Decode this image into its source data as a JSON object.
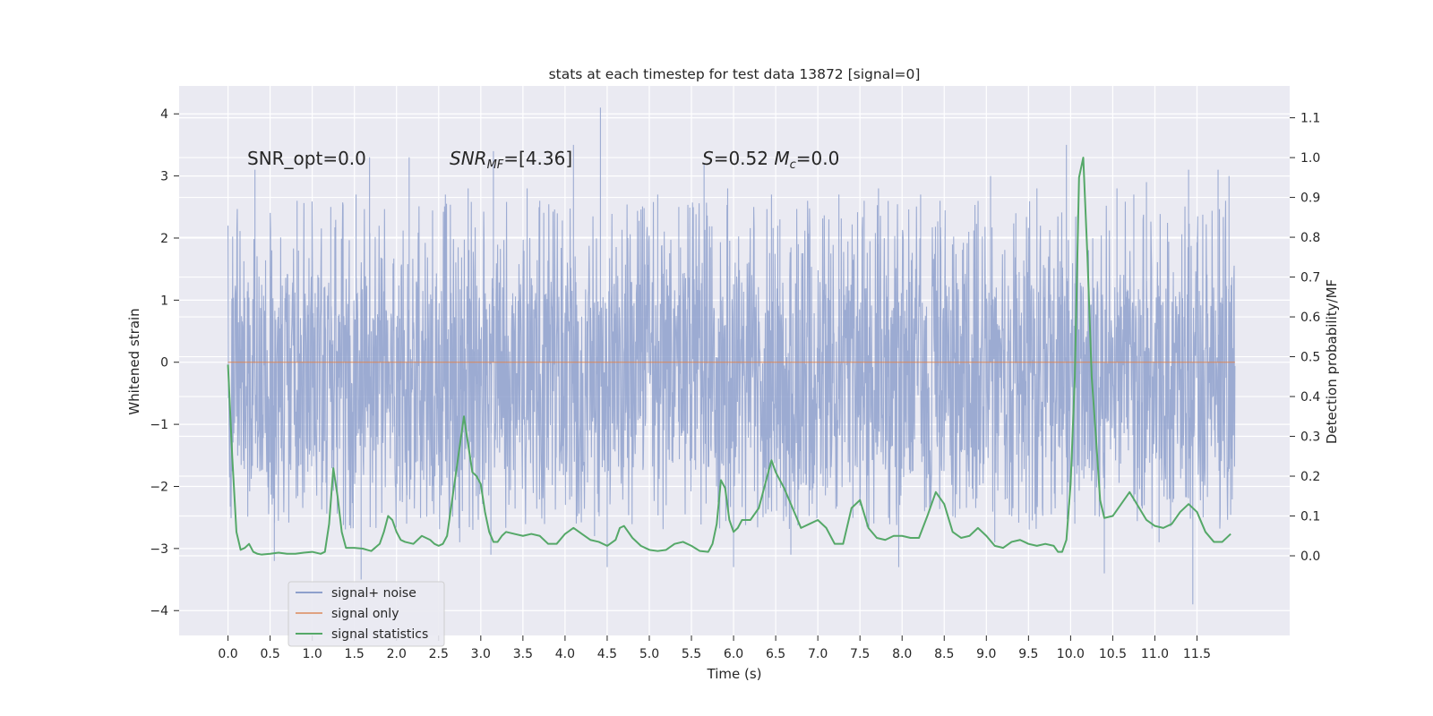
{
  "chart_data": {
    "type": "line",
    "title": "stats at each timestep for test data 13872 [signal=0]",
    "xlabel": "Time (s)",
    "ylabel_left": "Whitened strain",
    "ylabel_right": "Detection probability/MF",
    "xlim": [
      -0.58,
      12.6
    ],
    "ylim_left": [
      -4.4,
      4.45
    ],
    "ylim_right": [
      -0.2,
      1.18
    ],
    "x_ticks": [
      0.0,
      0.5,
      1.0,
      1.5,
      2.0,
      2.5,
      3.0,
      3.5,
      4.0,
      4.5,
      5.0,
      5.5,
      6.0,
      6.5,
      7.0,
      7.5,
      8.0,
      8.5,
      9.0,
      9.5,
      10.0,
      10.5,
      11.0,
      11.5
    ],
    "x_tick_labels": [
      "0.0",
      "0.5",
      "1.0",
      "1.5",
      "2.0",
      "2.5",
      "3.0",
      "3.5",
      "4.0",
      "4.5",
      "5.0",
      "5.5",
      "6.0",
      "6.5",
      "7.0",
      "7.5",
      "8.0",
      "8.5",
      "9.0",
      "9.5",
      "10.0",
      "10.5",
      "11.0",
      "11.5"
    ],
    "y_left_ticks": [
      -4,
      -3,
      -2,
      -1,
      0,
      1,
      2,
      3,
      4
    ],
    "y_left_tick_labels": [
      "−4",
      "−3",
      "−2",
      "−1",
      "0",
      "1",
      "2",
      "3",
      "4"
    ],
    "y_right_ticks": [
      0.0,
      0.1,
      0.2,
      0.3,
      0.4,
      0.5,
      0.6,
      0.7,
      0.8,
      0.9,
      1.0,
      1.1
    ],
    "y_right_tick_labels": [
      "0.0",
      "0.1",
      "0.2",
      "0.3",
      "0.4",
      "0.5",
      "0.6",
      "0.7",
      "0.8",
      "0.9",
      "1.0",
      "1.1"
    ],
    "grid": true,
    "legend_position": "lower-left",
    "annotations": [
      {
        "text": "SNR_opt=0.0"
      },
      {
        "pieces": [
          [
            "SNR",
            "i"
          ],
          [
            "MF",
            "i-sub"
          ],
          [
            "=[4.36]",
            "n"
          ]
        ]
      },
      {
        "pieces": [
          [
            "S",
            "i"
          ],
          [
            "=0.52   ",
            "n"
          ],
          [
            "M",
            "i"
          ],
          [
            "c",
            "i-sub"
          ],
          [
            "=0.0",
            "n"
          ]
        ]
      }
    ],
    "series": [
      {
        "name": "signal+ noise",
        "axis": "left",
        "color": "#8ea0cc",
        "time_range": [
          0.0,
          11.95
        ],
        "envelope_high": 1.3,
        "envelope_low": -1.8,
        "spikes": [
          [
            0.32,
            3.1
          ],
          [
            0.82,
            2.6
          ],
          [
            1.22,
            2.5
          ],
          [
            1.52,
            2.7
          ],
          [
            1.68,
            3.3
          ],
          [
            1.58,
            -3.5
          ],
          [
            2.12,
            -2.6
          ],
          [
            2.15,
            3.3
          ],
          [
            2.58,
            2.7
          ],
          [
            2.85,
            2.8
          ],
          [
            3.15,
            3.4
          ],
          [
            3.12,
            -3.1
          ],
          [
            3.55,
            2.8
          ],
          [
            4.1,
            3.5
          ],
          [
            4.42,
            4.1
          ],
          [
            4.5,
            -3.3
          ],
          [
            4.35,
            -2.8
          ],
          [
            5.1,
            2.7
          ],
          [
            5.65,
            3.2
          ],
          [
            5.93,
            2.8
          ],
          [
            6.0,
            -3.3
          ],
          [
            6.45,
            2.7
          ],
          [
            6.55,
            2.3
          ],
          [
            6.68,
            -3.1
          ],
          [
            7.25,
            2.7
          ],
          [
            7.55,
            2.6
          ],
          [
            7.72,
            2.8
          ],
          [
            7.96,
            -3.3
          ],
          [
            8.45,
            2.6
          ],
          [
            9.05,
            3.0
          ],
          [
            9.1,
            -2.9
          ],
          [
            9.6,
            2.8
          ],
          [
            9.95,
            3.5
          ],
          [
            10.05,
            -2.6
          ],
          [
            10.4,
            -3.4
          ],
          [
            10.55,
            2.8
          ],
          [
            10.9,
            2.9
          ],
          [
            11.05,
            -2.9
          ],
          [
            11.4,
            3.1
          ],
          [
            11.45,
            -3.9
          ],
          [
            11.75,
            3.1
          ],
          [
            11.88,
            3.0
          ],
          [
            11.9,
            -2.0
          ],
          [
            0.55,
            -3.2
          ],
          [
            2.75,
            -2.9
          ],
          [
            3.7,
            2.6
          ],
          [
            5.35,
            2.5
          ],
          [
            8.22,
            2.7
          ],
          [
            9.35,
            2.4
          ],
          [
            10.75,
            2.7
          ]
        ]
      },
      {
        "name": "signal only",
        "axis": "left",
        "color": "#dd8452",
        "x": [
          0.0,
          11.95
        ],
        "y": [
          0.0,
          0.0
        ]
      },
      {
        "name": "signal statistics",
        "axis": "right",
        "color": "#55a868",
        "x": [
          0.0,
          0.05,
          0.1,
          0.15,
          0.2,
          0.25,
          0.3,
          0.35,
          0.4,
          0.5,
          0.6,
          0.7,
          0.8,
          0.9,
          1.0,
          1.1,
          1.15,
          1.2,
          1.25,
          1.3,
          1.35,
          1.4,
          1.5,
          1.6,
          1.7,
          1.8,
          1.85,
          1.9,
          1.95,
          2.0,
          2.05,
          2.1,
          2.2,
          2.3,
          2.4,
          2.45,
          2.5,
          2.55,
          2.6,
          2.7,
          2.8,
          2.85,
          2.9,
          2.95,
          3.0,
          3.05,
          3.1,
          3.15,
          3.2,
          3.25,
          3.3,
          3.4,
          3.5,
          3.6,
          3.7,
          3.8,
          3.9,
          4.0,
          4.1,
          4.2,
          4.3,
          4.4,
          4.5,
          4.6,
          4.65,
          4.7,
          4.8,
          4.9,
          5.0,
          5.1,
          5.2,
          5.3,
          5.4,
          5.5,
          5.6,
          5.7,
          5.75,
          5.8,
          5.85,
          5.9,
          5.95,
          6.0,
          6.05,
          6.1,
          6.2,
          6.3,
          6.4,
          6.45,
          6.5,
          6.55,
          6.6,
          6.7,
          6.8,
          6.9,
          7.0,
          7.1,
          7.2,
          7.3,
          7.4,
          7.5,
          7.6,
          7.7,
          7.8,
          7.9,
          8.0,
          8.1,
          8.2,
          8.3,
          8.4,
          8.5,
          8.6,
          8.7,
          8.8,
          8.9,
          9.0,
          9.1,
          9.2,
          9.3,
          9.4,
          9.5,
          9.6,
          9.7,
          9.8,
          9.85,
          9.9,
          9.95,
          10.0,
          10.05,
          10.1,
          10.15,
          10.2,
          10.25,
          10.3,
          10.35,
          10.4,
          10.5,
          10.6,
          10.7,
          10.8,
          10.9,
          11.0,
          11.1,
          11.2,
          11.3,
          11.4,
          11.5,
          11.6,
          11.7,
          11.8,
          11.9
        ],
        "y": [
          0.48,
          0.25,
          0.06,
          0.015,
          0.02,
          0.03,
          0.01,
          0.005,
          0.003,
          0.005,
          0.008,
          0.005,
          0.005,
          0.008,
          0.01,
          0.005,
          0.01,
          0.08,
          0.22,
          0.15,
          0.06,
          0.02,
          0.02,
          0.018,
          0.012,
          0.03,
          0.06,
          0.1,
          0.09,
          0.06,
          0.04,
          0.035,
          0.03,
          0.05,
          0.04,
          0.03,
          0.025,
          0.03,
          0.05,
          0.2,
          0.35,
          0.28,
          0.21,
          0.2,
          0.18,
          0.11,
          0.06,
          0.035,
          0.035,
          0.05,
          0.06,
          0.055,
          0.05,
          0.055,
          0.05,
          0.03,
          0.03,
          0.055,
          0.07,
          0.055,
          0.04,
          0.035,
          0.025,
          0.04,
          0.07,
          0.075,
          0.045,
          0.025,
          0.015,
          0.012,
          0.015,
          0.03,
          0.035,
          0.025,
          0.012,
          0.01,
          0.03,
          0.08,
          0.19,
          0.17,
          0.09,
          0.06,
          0.07,
          0.09,
          0.09,
          0.12,
          0.2,
          0.24,
          0.21,
          0.19,
          0.17,
          0.12,
          0.07,
          0.08,
          0.09,
          0.07,
          0.03,
          0.03,
          0.12,
          0.14,
          0.07,
          0.045,
          0.04,
          0.05,
          0.05,
          0.045,
          0.045,
          0.1,
          0.16,
          0.13,
          0.06,
          0.045,
          0.05,
          0.07,
          0.05,
          0.025,
          0.02,
          0.035,
          0.04,
          0.03,
          0.025,
          0.03,
          0.025,
          0.01,
          0.01,
          0.04,
          0.18,
          0.45,
          0.95,
          1.0,
          0.75,
          0.45,
          0.3,
          0.14,
          0.095,
          0.1,
          0.13,
          0.16,
          0.125,
          0.09,
          0.075,
          0.07,
          0.08,
          0.11,
          0.13,
          0.11,
          0.06,
          0.035,
          0.035,
          0.055
        ]
      }
    ]
  }
}
